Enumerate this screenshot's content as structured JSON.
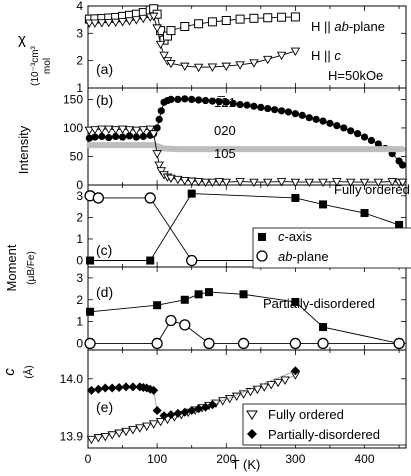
{
  "chart_data": [
    {
      "type": "line",
      "panel_label": "(a)",
      "ylabel": "χ",
      "yunit_lines": [
        "(10⁻³cm³",
        "mol",
        ")"
      ],
      "field_text": "H=50kOe",
      "xlim": [
        0,
        460
      ],
      "ylim": [
        1.0,
        4.0
      ],
      "yticks": [
        1,
        2,
        3,
        4
      ],
      "series": [
        {
          "name": "H || ab-plane",
          "marker": "square-open",
          "label_parts": [
            "H || ",
            "ab",
            "-plane"
          ],
          "x": [
            2,
            10,
            20,
            30,
            40,
            50,
            60,
            70,
            80,
            90,
            95,
            100,
            105,
            110,
            115,
            120,
            140,
            160,
            180,
            200,
            220,
            240,
            260,
            280,
            300
          ],
          "y": [
            3.52,
            3.53,
            3.54,
            3.56,
            3.58,
            3.62,
            3.66,
            3.7,
            3.76,
            3.85,
            3.9,
            3.7,
            3.1,
            2.75,
            2.9,
            3.1,
            3.25,
            3.35,
            3.42,
            3.47,
            3.52,
            3.55,
            3.57,
            3.59,
            3.6
          ]
        },
        {
          "name": "H || c",
          "marker": "triangle-down-open",
          "label_parts": [
            "H || ",
            "c",
            ""
          ],
          "x": [
            2,
            10,
            20,
            30,
            40,
            50,
            60,
            70,
            80,
            90,
            95,
            100,
            105,
            110,
            115,
            120,
            140,
            160,
            180,
            200,
            220,
            240,
            260,
            280,
            300
          ],
          "y": [
            3.38,
            3.38,
            3.39,
            3.4,
            3.41,
            3.43,
            3.46,
            3.5,
            3.55,
            3.6,
            3.63,
            3.2,
            2.6,
            2.2,
            2.0,
            1.9,
            1.8,
            1.76,
            1.77,
            1.8,
            1.85,
            1.92,
            2.05,
            2.2,
            2.35
          ]
        }
      ]
    },
    {
      "type": "scatter",
      "panel_label": "(b)",
      "ylabel": "Intensity",
      "xlim": [
        0,
        460
      ],
      "ylim": [
        0,
        170
      ],
      "yticks": [
        0,
        50,
        100,
        150
      ],
      "series": [
        {
          "name": "1̅21",
          "marker": "circle-filled",
          "x": [
            2,
            10,
            20,
            30,
            40,
            50,
            60,
            70,
            80,
            90,
            95,
            100,
            103,
            106,
            110,
            115,
            120,
            130,
            140,
            150,
            160,
            170,
            180,
            190,
            200,
            210,
            220,
            230,
            240,
            250,
            260,
            270,
            280,
            290,
            300,
            310,
            320,
            330,
            340,
            350,
            360,
            370,
            380,
            390,
            400,
            410,
            420,
            430,
            440,
            450,
            455
          ],
          "y": [
            82,
            84,
            85,
            83,
            85,
            84,
            86,
            84,
            85,
            87,
            90,
            100,
            115,
            130,
            145,
            148,
            150,
            150,
            151,
            150,
            149,
            148,
            147,
            146,
            145,
            143,
            141,
            140,
            138,
            136,
            134,
            132,
            130,
            128,
            125,
            122,
            118,
            115,
            112,
            108,
            104,
            100,
            95,
            90,
            84,
            78,
            72,
            64,
            55,
            42,
            35
          ]
        },
        {
          "name": "020",
          "marker": "gray-band",
          "x": [
            2,
            20,
            40,
            60,
            80,
            95,
            100,
            110,
            130,
            150,
            175,
            200,
            225,
            250,
            275,
            300,
            325,
            350,
            375,
            400,
            425,
            450,
            455
          ],
          "y": [
            70,
            70,
            70,
            70,
            70,
            70,
            68,
            64,
            63,
            63,
            63,
            63,
            63,
            63,
            63,
            63,
            63,
            63,
            63,
            63,
            63,
            63,
            63
          ]
        },
        {
          "name": "105",
          "marker": "triangle-down-open",
          "x": [
            2,
            10,
            20,
            30,
            40,
            50,
            60,
            70,
            80,
            90,
            95,
            100,
            103,
            106,
            110,
            115,
            120,
            130,
            140,
            150,
            160,
            170,
            180,
            190,
            200,
            220,
            240,
            260,
            280,
            300,
            320,
            340,
            360,
            380,
            400,
            420,
            440,
            450,
            455
          ],
          "y": [
            96,
            97,
            98,
            98,
            97,
            98,
            97,
            96,
            97,
            98,
            90,
            55,
            35,
            25,
            18,
            14,
            12,
            10,
            8,
            7,
            6,
            5,
            5,
            6,
            5,
            6,
            5,
            5,
            6,
            5,
            5,
            5,
            6,
            5,
            5,
            5,
            6,
            5,
            5
          ]
        }
      ]
    },
    {
      "type": "line",
      "panel_label": "(c)",
      "ylim": [
        -0.3,
        3.5
      ],
      "yticks": [
        0,
        1,
        2,
        3
      ],
      "xlim": [
        0,
        460
      ],
      "title": "Fully ordered",
      "series": [
        {
          "name": "c-axis",
          "label_parts": [
            "c",
            "-axis"
          ],
          "marker": "square-filled",
          "x": [
            3,
            90,
            150,
            300,
            340,
            400,
            450
          ],
          "y": [
            0,
            0,
            3.1,
            2.9,
            2.6,
            2.2,
            1.65
          ]
        },
        {
          "name": "ab-plane",
          "label_parts": [
            "ab",
            "-plane"
          ],
          "marker": "circle-open",
          "x": [
            3,
            15,
            90,
            150,
            300,
            340,
            400,
            450
          ],
          "y": [
            3.0,
            2.9,
            2.9,
            0,
            0,
            0,
            0,
            0
          ]
        }
      ]
    },
    {
      "type": "line",
      "panel_label": "(d)",
      "shared_ylabel": "Moment",
      "shared_yunit": "(μB/Fe)",
      "ylim": [
        -0.3,
        3.5
      ],
      "yticks": [
        0,
        1,
        2,
        3
      ],
      "xlim": [
        0,
        460
      ],
      "title": "Partially-disordered",
      "series": [
        {
          "name": "c-axis",
          "marker": "square-filled",
          "x": [
            3,
            100,
            140,
            160,
            175,
            225,
            300,
            340,
            450
          ],
          "y": [
            1.45,
            1.75,
            2.0,
            2.25,
            2.35,
            2.25,
            1.9,
            0.75,
            0
          ]
        },
        {
          "name": "ab-plane",
          "marker": "circle-open",
          "x": [
            3,
            100,
            120,
            140,
            175,
            225,
            300,
            340,
            450
          ],
          "y": [
            0,
            0,
            1.05,
            0.85,
            0,
            0,
            0,
            0,
            0
          ]
        }
      ]
    },
    {
      "type": "scatter",
      "panel_label": "(e)",
      "ylabel": "c",
      "yunit": "(Å)",
      "xlabel": "T (K)",
      "xlim": [
        0,
        460
      ],
      "ylim": [
        13.88,
        14.05
      ],
      "yticks": [
        13.9,
        14.0
      ],
      "ytick_labels": [
        "13.9",
        "14.0"
      ],
      "xticks": [
        0,
        100,
        200,
        300,
        400
      ],
      "series": [
        {
          "name": "Fully ordered",
          "marker": "triangle-down-open",
          "x": [
            5,
            15,
            25,
            35,
            45,
            55,
            65,
            75,
            85,
            95,
            105,
            115,
            125,
            135,
            145,
            155,
            165,
            175,
            185,
            195,
            205,
            215,
            225,
            235,
            245,
            255,
            265,
            275,
            285,
            300
          ],
          "y": [
            13.895,
            13.898,
            13.9,
            13.903,
            13.906,
            13.909,
            13.912,
            13.915,
            13.918,
            13.922,
            13.926,
            13.93,
            13.934,
            13.938,
            13.942,
            13.946,
            13.95,
            13.954,
            13.958,
            13.962,
            13.966,
            13.97,
            13.974,
            13.978,
            13.982,
            13.986,
            13.99,
            13.994,
            13.998,
            14.007
          ]
        },
        {
          "name": "Partially-disordered",
          "marker": "diamond-filled",
          "x": [
            5,
            15,
            25,
            35,
            45,
            55,
            65,
            75,
            80,
            85,
            90,
            95,
            100,
            110,
            120,
            130,
            140,
            150,
            160,
            170,
            180,
            300
          ],
          "y": [
            13.98,
            13.982,
            13.984,
            13.984,
            13.985,
            13.986,
            13.986,
            13.986,
            13.985,
            13.984,
            13.982,
            13.98,
            13.945,
            13.936,
            13.938,
            13.94,
            13.942,
            13.945,
            13.948,
            13.951,
            13.955,
            14.014
          ]
        }
      ]
    }
  ]
}
